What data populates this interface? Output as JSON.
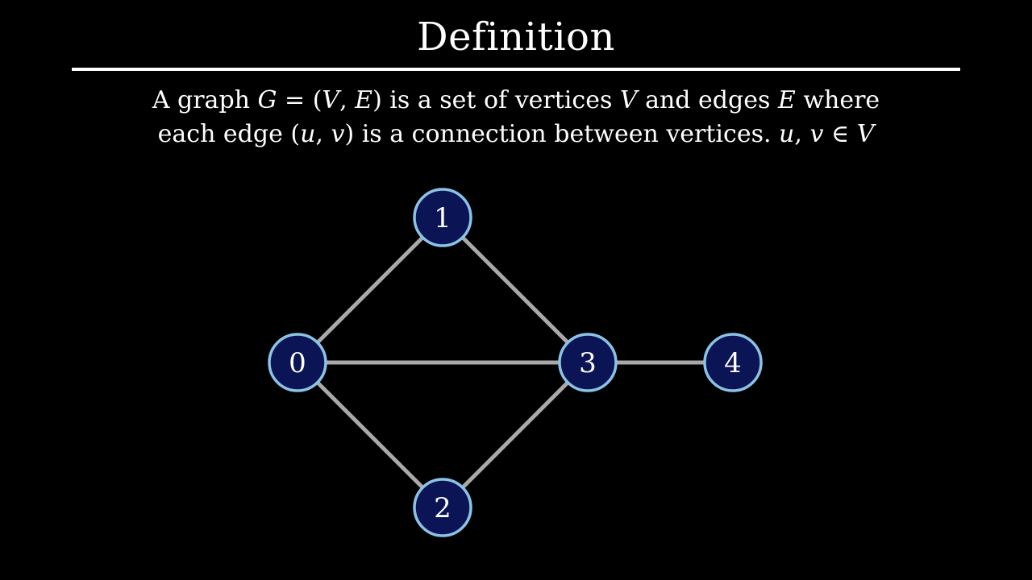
{
  "slide": {
    "title": "Definition",
    "definition": {
      "line1": [
        {
          "text": "A graph ",
          "math": false
        },
        {
          "text": "G",
          "math": true
        },
        {
          "text": " = (",
          "math": false
        },
        {
          "text": "V",
          "math": true
        },
        {
          "text": ", ",
          "math": false
        },
        {
          "text": "E",
          "math": true
        },
        {
          "text": ") is a set of vertices ",
          "math": false
        },
        {
          "text": "V",
          "math": true
        },
        {
          "text": " and edges ",
          "math": false
        },
        {
          "text": "E",
          "math": true
        },
        {
          "text": " where",
          "math": false
        }
      ],
      "line2": [
        {
          "text": "each edge (",
          "math": false
        },
        {
          "text": "u",
          "math": true
        },
        {
          "text": ", ",
          "math": false
        },
        {
          "text": "v",
          "math": true
        },
        {
          "text": ") is a connection between vertices.  ",
          "math": false
        },
        {
          "text": "u",
          "math": true
        },
        {
          "text": ", ",
          "math": false
        },
        {
          "text": "v",
          "math": true
        },
        {
          "text": " ∈ ",
          "math": false
        },
        {
          "text": "V",
          "math": true
        }
      ]
    }
  },
  "graph": {
    "colors": {
      "node_fill": "#0b1555",
      "node_stroke": "#8cc2e6",
      "edge": "#a9a9a9",
      "label": "#ffffff",
      "background": "#000000"
    },
    "nodes": [
      {
        "id": 0,
        "label": "0"
      },
      {
        "id": 1,
        "label": "1"
      },
      {
        "id": 2,
        "label": "2"
      },
      {
        "id": 3,
        "label": "3"
      },
      {
        "id": 4,
        "label": "4"
      }
    ],
    "edges": [
      {
        "from": 0,
        "to": 1
      },
      {
        "from": 0,
        "to": 3
      },
      {
        "from": 0,
        "to": 2
      },
      {
        "from": 1,
        "to": 3
      },
      {
        "from": 2,
        "to": 3
      },
      {
        "from": 3,
        "to": 4
      }
    ]
  }
}
